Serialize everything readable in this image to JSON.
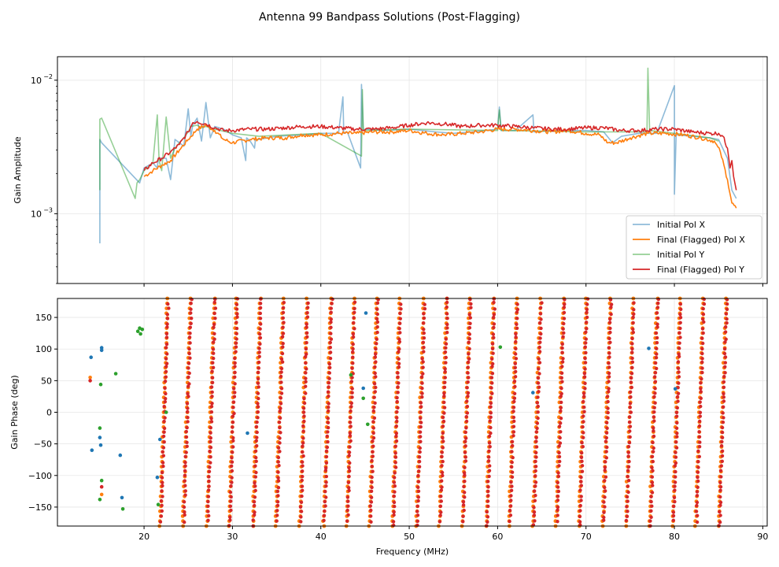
{
  "chart_data": {
    "type": "line",
    "title": "Antenna 99 Bandpass Solutions (Post-Flagging)",
    "colors": {
      "initial_x": "#1f77b4",
      "final_x": "#ff7f0e",
      "initial_y": "#2ca02c",
      "final_y": "#d62728",
      "grid": "#e6e6e6"
    },
    "xlabel": "Frequency (MHz)",
    "xlim": [
      10.2,
      90.5
    ],
    "xticks": [
      20,
      30,
      40,
      50,
      60,
      70,
      80,
      90
    ],
    "legend": {
      "placement": "lower-right",
      "entries": [
        "Initial Pol X",
        "Final (Flagged) Pol X",
        "Initial Pol Y",
        "Final (Flagged) Pol Y"
      ]
    },
    "panels": [
      {
        "id": "amplitude",
        "ylabel": "Gain Amplitude",
        "yscale": "log",
        "ylim": [
          0.0003,
          0.015
        ],
        "yticks": [
          {
            "value": 0.001,
            "label": "10",
            "exp": "−3"
          },
          {
            "value": 0.01,
            "label": "10",
            "exp": "−2"
          }
        ],
        "series": [
          {
            "name": "Initial Pol X",
            "key": "initial_x",
            "x": [
              15.0,
              15.0,
              15.2,
              19.5,
              20.0,
              21.0,
              21.5,
              21.6,
              22.5,
              23.0,
              23.5,
              24.0,
              24.5,
              25.0,
              25.3,
              25.5,
              26.0,
              26.5,
              27.0,
              27.5,
              28.0,
              29.0,
              30.0,
              31.0,
              31.5,
              31.6,
              32.0,
              32.5,
              32.6,
              33.0,
              35.0,
              38.0,
              40.0,
              42.0,
              42.5,
              42.6,
              43.0,
              44.5,
              44.6,
              44.8,
              45.0,
              47.0,
              50.0,
              53.0,
              55.0,
              57.0,
              60.0,
              60.2,
              60.4,
              62.0,
              64.0,
              64.1,
              66.0,
              68.0,
              70.0,
              72.0,
              73.0,
              74.0,
              76.0,
              78.0,
              80.0,
              80.0,
              80.2,
              82.0,
              84.0,
              85.0,
              86.0,
              86.5,
              87.0
            ],
            "y": [
              0.0006,
              0.0036,
              0.0034,
              0.0017,
              0.0022,
              0.0024,
              0.0022,
              0.0026,
              0.0026,
              0.0018,
              0.0036,
              0.0034,
              0.0032,
              0.0061,
              0.0038,
              0.0046,
              0.0052,
              0.0035,
              0.0068,
              0.0037,
              0.0045,
              0.0043,
              0.0039,
              0.0037,
              0.0025,
              0.0037,
              0.0035,
              0.0031,
              0.0036,
              0.0036,
              0.0038,
              0.0039,
              0.004,
              0.004,
              0.0075,
              0.004,
              0.0041,
              0.0022,
              0.0093,
              0.0042,
              0.0043,
              0.0042,
              0.0043,
              0.0041,
              0.004,
              0.0041,
              0.0043,
              0.0063,
              0.0042,
              0.0042,
              0.0055,
              0.0041,
              0.0042,
              0.0042,
              0.0042,
              0.0041,
              0.0034,
              0.0038,
              0.004,
              0.004,
              0.0091,
              0.0014,
              0.0039,
              0.0038,
              0.0037,
              0.0036,
              0.0026,
              0.0015,
              0.0013
            ]
          },
          {
            "name": "Final (Flagged) Pol X",
            "key": "final_x",
            "x": [
              20.0,
              21.0,
              22.0,
              23.0,
              24.0,
              25.0,
              26.0,
              27.0,
              28.0,
              29.0,
              30.0,
              32.0,
              34.0,
              36.0,
              38.0,
              40.0,
              42.0,
              44.0,
              46.0,
              48.0,
              50.0,
              52.0,
              54.0,
              56.0,
              58.0,
              60.0,
              62.0,
              64.0,
              66.0,
              68.0,
              70.0,
              71.5,
              72.5,
              73.5,
              75.0,
              77.0,
              79.0,
              81.0,
              83.0,
              84.5,
              85.2,
              86.0,
              86.5,
              87.0
            ],
            "y": [
              0.0019,
              0.0021,
              0.0023,
              0.0025,
              0.003,
              0.0036,
              0.0043,
              0.0046,
              0.0042,
              0.0036,
              0.0034,
              0.0036,
              0.0037,
              0.0037,
              0.0039,
              0.0039,
              0.004,
              0.004,
              0.0041,
              0.0041,
              0.0042,
              0.004,
              0.0039,
              0.004,
              0.0041,
              0.0043,
              0.0043,
              0.0042,
              0.0041,
              0.0042,
              0.004,
              0.0039,
              0.0034,
              0.0034,
              0.0037,
              0.004,
              0.004,
              0.0039,
              0.0037,
              0.0035,
              0.0029,
              0.0018,
              0.0012,
              0.0011
            ]
          },
          {
            "name": "Initial Pol Y",
            "key": "initial_y",
            "x": [
              15.0,
              15.0,
              15.2,
              19.0,
              19.2,
              19.5,
              20.0,
              21.0,
              21.5,
              21.7,
              22.0,
              22.5,
              23.0,
              23.5,
              24.0,
              24.5,
              25.0,
              25.3,
              26.0,
              26.5,
              27.0,
              28.0,
              30.0,
              33.0,
              40.0,
              44.6,
              44.7,
              44.8,
              50.0,
              60.0,
              60.2,
              60.4,
              70.0,
              76.9,
              77.0,
              77.2,
              80.0,
              84.0,
              85.0
            ],
            "y": [
              0.0015,
              0.0051,
              0.0052,
              0.0013,
              0.0017,
              0.0018,
              0.0021,
              0.0024,
              0.0055,
              0.0025,
              0.0021,
              0.0053,
              0.0026,
              0.0031,
              0.0034,
              0.0037,
              0.0041,
              0.0045,
              0.0046,
              0.0044,
              0.0045,
              0.0043,
              0.004,
              0.0038,
              0.004,
              0.0027,
              0.0085,
              0.0042,
              0.0043,
              0.0042,
              0.006,
              0.0042,
              0.0041,
              0.0041,
              0.0123,
              0.0042,
              0.004,
              0.0037,
              0.0035
            ]
          },
          {
            "name": "Final (Flagged) Pol Y",
            "key": "final_y",
            "x": [
              20.0,
              21.0,
              22.0,
              23.0,
              24.0,
              25.0,
              25.5,
              26.0,
              27.0,
              28.0,
              29.0,
              30.0,
              32.0,
              34.0,
              36.0,
              38.0,
              40.0,
              42.0,
              44.0,
              46.0,
              48.0,
              50.0,
              52.0,
              54.0,
              56.0,
              58.0,
              60.0,
              62.0,
              64.0,
              66.0,
              68.0,
              70.0,
              72.0,
              74.0,
              76.0,
              78.0,
              80.0,
              82.0,
              84.0,
              85.0,
              85.5,
              86.0,
              86.3,
              86.5,
              86.7,
              87.0
            ],
            "y": [
              0.0021,
              0.0024,
              0.0026,
              0.0029,
              0.0033,
              0.0041,
              0.0048,
              0.0049,
              0.0047,
              0.0044,
              0.0042,
              0.0042,
              0.0043,
              0.0043,
              0.0044,
              0.0045,
              0.0045,
              0.0044,
              0.0043,
              0.0043,
              0.0044,
              0.0046,
              0.0048,
              0.0047,
              0.0045,
              0.0046,
              0.0046,
              0.0045,
              0.0044,
              0.0043,
              0.0043,
              0.0044,
              0.0044,
              0.0042,
              0.0042,
              0.0043,
              0.0043,
              0.0041,
              0.004,
              0.004,
              0.0038,
              0.0031,
              0.0022,
              0.0025,
              0.0019,
              0.0015
            ]
          }
        ]
      },
      {
        "id": "phase",
        "ylabel": "Gain Phase (deg)",
        "yscale": "linear",
        "ylim": [
          -180,
          180
        ],
        "yticks": [
          {
            "value": -150,
            "label": "−150"
          },
          {
            "value": -100,
            "label": "−100"
          },
          {
            "value": -50,
            "label": "−50"
          },
          {
            "value": 0,
            "label": "0"
          },
          {
            "value": 50,
            "label": "50"
          },
          {
            "value": 100,
            "label": "100"
          },
          {
            "value": 150,
            "label": "150"
          }
        ],
        "wrap_starts": [
          21.8,
          24.4,
          27.1,
          29.6,
          32.3,
          34.9,
          37.6,
          40.3,
          42.9,
          45.5,
          48.1,
          50.8,
          53.4,
          56.0,
          58.7,
          61.3,
          64.0,
          66.6,
          69.2,
          71.9,
          74.5,
          77.2,
          79.8,
          82.4,
          85.0
        ],
        "wrap_period_width": 0.85,
        "scatter_outliers": [
          {
            "key": "initial_x",
            "x": 14.0,
            "y": 87
          },
          {
            "key": "initial_x",
            "x": 14.1,
            "y": -60
          },
          {
            "key": "initial_x",
            "x": 15.2,
            "y": 102
          },
          {
            "key": "initial_x",
            "x": 15.2,
            "y": 98
          },
          {
            "key": "initial_x",
            "x": 15.0,
            "y": -40
          },
          {
            "key": "initial_x",
            "x": 15.1,
            "y": -52
          },
          {
            "key": "initial_x",
            "x": 17.3,
            "y": -68
          },
          {
            "key": "initial_x",
            "x": 17.5,
            "y": -135
          },
          {
            "key": "initial_x",
            "x": 21.8,
            "y": -43
          },
          {
            "key": "initial_x",
            "x": 21.5,
            "y": -103
          },
          {
            "key": "initial_x",
            "x": 31.7,
            "y": -33
          },
          {
            "key": "initial_x",
            "x": 44.8,
            "y": 38
          },
          {
            "key": "initial_x",
            "x": 45.1,
            "y": 157
          },
          {
            "key": "initial_x",
            "x": 64.0,
            "y": 31
          },
          {
            "key": "initial_x",
            "x": 77.1,
            "y": 101
          },
          {
            "key": "initial_x",
            "x": 80.1,
            "y": 37
          },
          {
            "key": "final_x",
            "x": 13.9,
            "y": 55
          },
          {
            "key": "final_x",
            "x": 15.2,
            "y": -130
          },
          {
            "key": "final_y",
            "x": 13.9,
            "y": 50
          },
          {
            "key": "final_y",
            "x": 15.2,
            "y": -118
          },
          {
            "key": "initial_y",
            "x": 15.0,
            "y": -25
          },
          {
            "key": "initial_y",
            "x": 15.1,
            "y": 44
          },
          {
            "key": "initial_y",
            "x": 15.2,
            "y": -108
          },
          {
            "key": "initial_y",
            "x": 15.0,
            "y": -138
          },
          {
            "key": "initial_y",
            "x": 16.8,
            "y": 61
          },
          {
            "key": "initial_y",
            "x": 17.6,
            "y": -153
          },
          {
            "key": "initial_y",
            "x": 19.3,
            "y": 128
          },
          {
            "key": "initial_y",
            "x": 19.5,
            "y": 133
          },
          {
            "key": "initial_y",
            "x": 19.8,
            "y": 131
          },
          {
            "key": "initial_y",
            "x": 19.6,
            "y": 124
          },
          {
            "key": "initial_y",
            "x": 22.5,
            "y": 0
          },
          {
            "key": "initial_y",
            "x": 21.6,
            "y": -146
          },
          {
            "key": "initial_y",
            "x": 43.4,
            "y": 59
          },
          {
            "key": "initial_y",
            "x": 44.8,
            "y": 22
          },
          {
            "key": "initial_y",
            "x": 45.3,
            "y": -19
          },
          {
            "key": "initial_y",
            "x": 60.3,
            "y": 103
          }
        ]
      }
    ]
  }
}
